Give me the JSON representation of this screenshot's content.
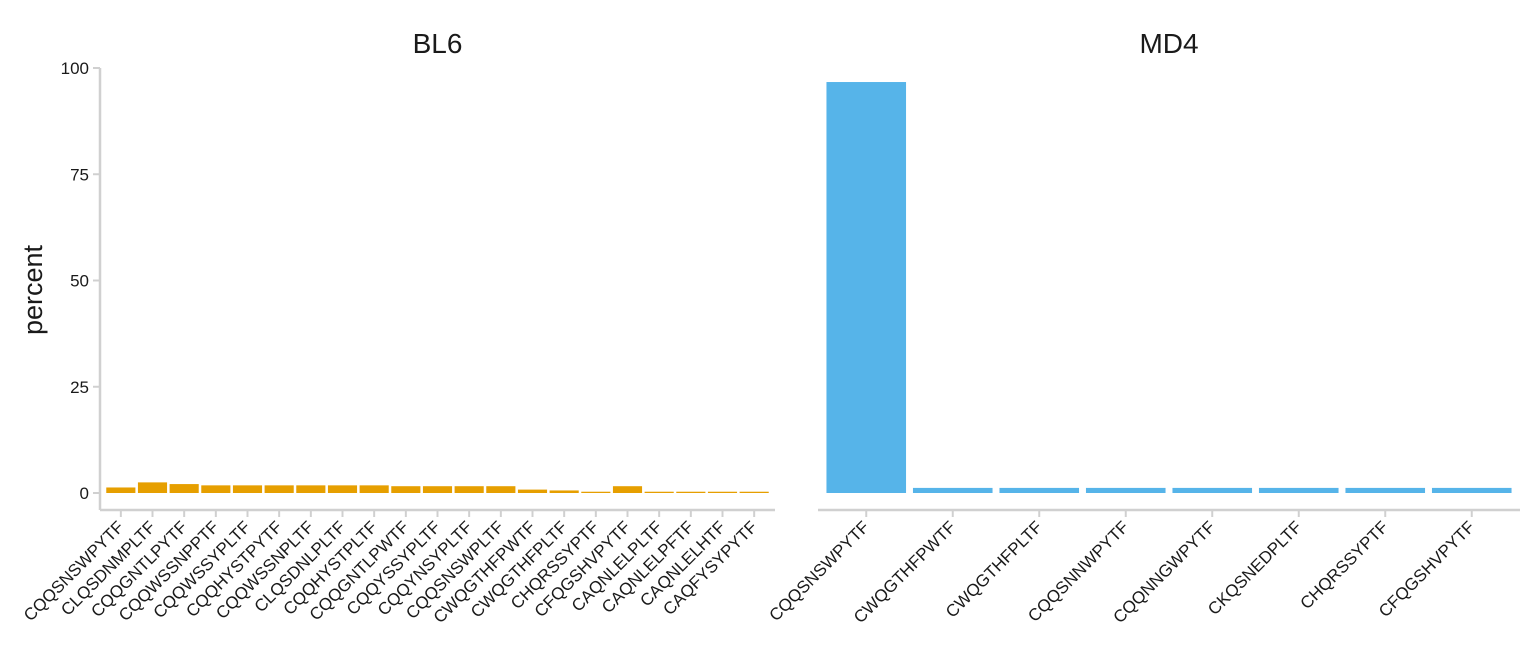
{
  "chart_data": {
    "type": "bar",
    "ylabel": "percent",
    "ylim": [
      -4,
      100
    ],
    "yticks": [
      0,
      25,
      50,
      75,
      100
    ],
    "grid": false,
    "panels": [
      {
        "title": "BL6",
        "color": "#E69F00",
        "categories": [
          "CQQSNSWPYTF",
          "CLQSDNMPLTF",
          "CQQGNTLPYTF",
          "CQQWSSNPPTF",
          "CQQWSSYPLTF",
          "CQQHYSTPYTF",
          "CQQWSSNPLTF",
          "CLQSDNLPLTF",
          "CQQHYSTPLTF",
          "CQQGNTLPWTF",
          "CQQYSSYPLTF",
          "CQQYNSYPLTF",
          "CQQSNSWPLTF",
          "CWQGTHFPWTF",
          "CWQGTHFPLTF",
          "CHQRSSYPTF",
          "CFQGSHVPYTF",
          "CAQNLELPLTF",
          "CAQNLELPFTF",
          "CAQNLELHTF",
          "CAQFYSYPYTF"
        ],
        "values": [
          1.3,
          2.5,
          2.1,
          1.8,
          1.8,
          1.8,
          1.8,
          1.8,
          1.8,
          1.6,
          1.6,
          1.6,
          1.6,
          0.8,
          0.6,
          0.3,
          1.6,
          0.3,
          0.3,
          0.3,
          0.3
        ]
      },
      {
        "title": "MD4",
        "color": "#56B4E9",
        "categories": [
          "CQQSNSWPYTF",
          "CWQGTHFPWTF",
          "CWQGTHFPLTF",
          "CQQSNNWPYTF",
          "CQQNNGWPYTF",
          "CKQSNEDPLTF",
          "CHQRSSYPTF",
          "CFQGSHVPYTF"
        ],
        "values": [
          96.7,
          1.2,
          1.2,
          1.2,
          1.2,
          1.2,
          1.2,
          1.2
        ]
      }
    ]
  }
}
